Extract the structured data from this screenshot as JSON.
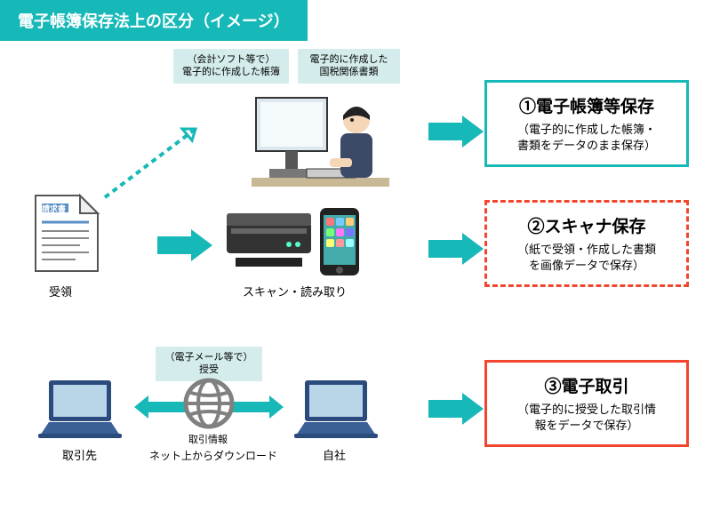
{
  "title": "電子帳簿保存法上の区分（イメージ）",
  "colors": {
    "teal": "#17b8b8",
    "tag_bg": "#d4edec",
    "red": "#f2452e",
    "gray": "#808080",
    "navy": "#2a4b7c"
  },
  "tags": {
    "software": "（会計ソフト等で）\n電子的に作成した帳簿",
    "tax_docs": "電子的に作成した\n国税関係書類",
    "email": "（電子メール等で）\n授受"
  },
  "labels": {
    "receipt": "受領",
    "scan": "スキャン・読み取り",
    "partner": "取引先",
    "self": "自社",
    "txn_info": "取引情報",
    "download": "ネット上からダウンロード",
    "invoice_title": "請求書"
  },
  "boxes": {
    "b1": {
      "title": "①電子帳簿等保存",
      "desc": "（電子的に作成した帳簿・\n書類をデータのまま保存）",
      "border": "3px solid #17b8b8"
    },
    "b2": {
      "title": "②スキャナ保存",
      "desc": "（紙で受領・作成した書類\nを画像データで保存）",
      "border": "3px dashed #f2452e"
    },
    "b3": {
      "title": "③電子取引",
      "desc": "（電子的に授受した取引情\n報をデータで保存）",
      "border": "3px solid #f2452e"
    }
  }
}
